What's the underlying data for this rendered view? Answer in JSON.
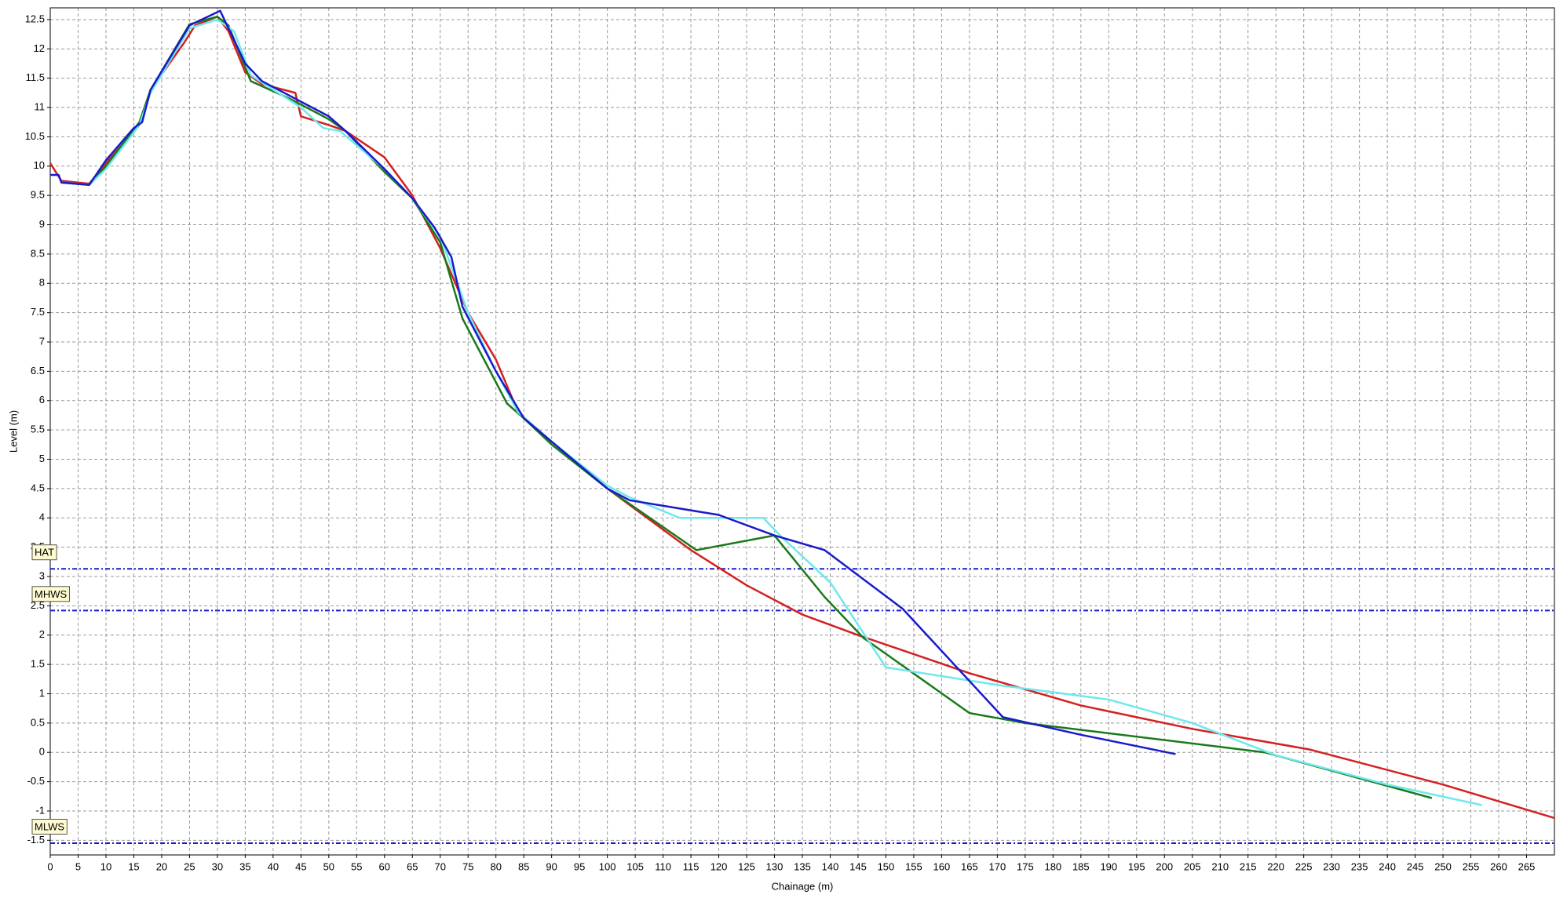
{
  "chart_data": {
    "type": "line",
    "xlabel": "Chainage (m)",
    "ylabel": "Level (m)",
    "xlim": [
      0,
      270
    ],
    "ylim": [
      -1.75,
      12.7
    ],
    "xticks": [
      0,
      5,
      10,
      15,
      20,
      25,
      30,
      35,
      40,
      45,
      50,
      55,
      60,
      65,
      70,
      75,
      80,
      85,
      90,
      95,
      100,
      105,
      110,
      115,
      120,
      125,
      130,
      135,
      140,
      145,
      150,
      155,
      160,
      165,
      170,
      175,
      180,
      185,
      190,
      195,
      200,
      205,
      210,
      215,
      220,
      225,
      230,
      235,
      240,
      245,
      250,
      255,
      260,
      265
    ],
    "yticks": [
      -1.5,
      -1,
      -0.5,
      0,
      0.5,
      1,
      1.5,
      2,
      2.5,
      3,
      3.5,
      4,
      4.5,
      5,
      5.5,
      6,
      6.5,
      7,
      7.5,
      8,
      8.5,
      9,
      9.5,
      10,
      10.5,
      11,
      11.5,
      12,
      12.5
    ],
    "grid": true,
    "reference_lines": [
      {
        "label": "HAT",
        "value": 3.13,
        "color": "#1a1acc"
      },
      {
        "label": "MHWS",
        "value": 2.42,
        "color": "#1a1acc"
      },
      {
        "label": "MLWS",
        "value": -1.55,
        "color": "#1a1acc"
      }
    ],
    "series": [
      {
        "color": "#d42020",
        "x": [
          0,
          1,
          2,
          7,
          10,
          16,
          18,
          24,
          26,
          30,
          32,
          35,
          38,
          44,
          45,
          50,
          53,
          60,
          65,
          70,
          75,
          80,
          84,
          90,
          100,
          115,
          125,
          135,
          145,
          165,
          185,
          205,
          226,
          250,
          270
        ],
        "values": [
          10.05,
          9.9,
          9.75,
          9.7,
          10.05,
          10.7,
          11.3,
          12.1,
          12.4,
          12.55,
          12.3,
          11.6,
          11.4,
          11.25,
          10.85,
          10.7,
          10.6,
          10.15,
          9.5,
          8.6,
          7.5,
          6.7,
          5.8,
          5.3,
          4.5,
          3.45,
          2.85,
          2.35,
          2.0,
          1.35,
          0.8,
          0.4,
          0.05,
          -0.55,
          -1.12
        ]
      },
      {
        "color": "#1a7a1a",
        "x": [
          2,
          7,
          10,
          16,
          18,
          25,
          30,
          32,
          36,
          43,
          50,
          53,
          60,
          65,
          70,
          74,
          82,
          85,
          90,
          100,
          116,
          130,
          139,
          146,
          165,
          175,
          218,
          248
        ],
        "values": [
          9.72,
          9.68,
          10.0,
          10.75,
          11.3,
          12.42,
          12.55,
          12.4,
          11.45,
          11.15,
          10.8,
          10.6,
          9.9,
          9.45,
          8.7,
          7.4,
          5.95,
          5.7,
          5.25,
          4.5,
          3.45,
          3.7,
          2.65,
          1.95,
          0.67,
          0.5,
          0.0,
          -0.78
        ]
      },
      {
        "color": "#6ee8ee",
        "x": [
          2,
          7,
          10,
          16,
          18,
          25,
          30,
          33,
          36,
          45,
          49,
          52,
          60,
          65,
          70,
          75,
          80,
          84,
          90,
          100,
          104,
          113,
          128,
          131,
          140,
          150,
          170,
          190,
          205,
          220,
          240,
          257
        ],
        "values": [
          9.72,
          9.68,
          9.95,
          10.7,
          11.25,
          12.35,
          12.5,
          12.3,
          11.55,
          11.0,
          10.65,
          10.6,
          9.95,
          9.45,
          8.8,
          7.5,
          6.5,
          5.8,
          5.3,
          4.55,
          4.35,
          4.0,
          4.0,
          3.7,
          2.9,
          1.45,
          1.15,
          0.9,
          0.5,
          -0.05,
          -0.55,
          -0.9
        ]
      },
      {
        "color": "#1a1acc",
        "x": [
          0,
          1.5,
          2,
          7,
          10,
          15,
          16.5,
          18,
          25,
          30.5,
          35,
          38,
          45,
          50,
          53,
          60,
          65,
          69,
          72,
          74,
          80,
          85,
          90,
          95,
          100,
          104,
          120,
          130,
          139,
          153,
          171,
          185,
          202
        ],
        "values": [
          9.85,
          9.85,
          9.72,
          9.68,
          10.1,
          10.65,
          10.75,
          11.3,
          12.4,
          12.65,
          11.75,
          11.45,
          11.1,
          10.85,
          10.6,
          9.95,
          9.45,
          8.95,
          8.45,
          7.6,
          6.5,
          5.7,
          5.3,
          4.9,
          4.5,
          4.3,
          4.05,
          3.7,
          3.45,
          2.45,
          0.6,
          0.3,
          -0.03
        ]
      }
    ]
  }
}
